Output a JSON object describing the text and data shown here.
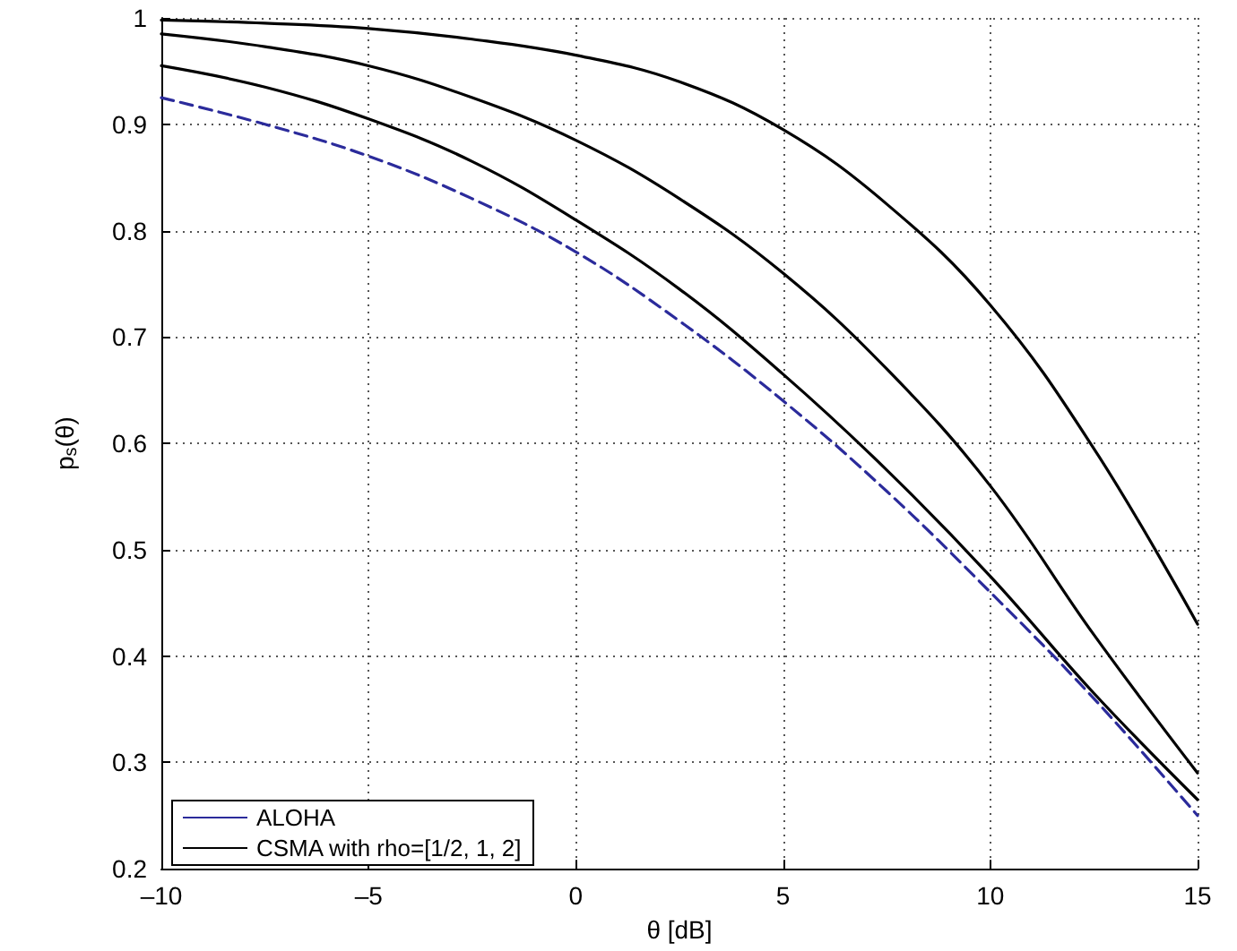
{
  "chart_data": {
    "type": "line",
    "xlabel": "θ [dB]",
    "ylabel": "p$_{s}$(θ)",
    "x": [
      -10,
      -7.5,
      -5,
      -2.5,
      0,
      2.5,
      5,
      7.5,
      10,
      12.5,
      15
    ],
    "series": [
      {
        "name": "ALOHA",
        "color": "#2b2b9b",
        "line_style": "dashed",
        "values": [
          0.925,
          0.9,
          0.87,
          0.83,
          0.78,
          0.715,
          0.64,
          0.555,
          0.46,
          0.36,
          0.25
        ]
      },
      {
        "name": "CSMA with rho=[1/2, 1, 2]",
        "color": "#000000",
        "line_style": "solid",
        "values": [
          0.955,
          0.935,
          0.905,
          0.865,
          0.81,
          0.745,
          0.665,
          0.575,
          0.475,
          0.365,
          0.265
        ]
      },
      {
        "color": "#000000",
        "line_style": "solid",
        "values": [
          0.985,
          0.973,
          0.955,
          0.925,
          0.885,
          0.83,
          0.76,
          0.67,
          0.56,
          0.42,
          0.29
        ]
      },
      {
        "color": "#000000",
        "line_style": "solid",
        "values": [
          0.998,
          0.995,
          0.99,
          0.98,
          0.965,
          0.94,
          0.895,
          0.825,
          0.73,
          0.595,
          0.43
        ]
      }
    ],
    "xlim": [
      -10,
      15
    ],
    "xticks": [
      {
        "value": -10,
        "label": "–10"
      },
      {
        "value": -5,
        "label": "–5"
      },
      0,
      5,
      10,
      15
    ],
    "ylim": [
      0.2,
      1
    ],
    "yticks": [
      0.2,
      0.3,
      0.4,
      0.5,
      0.6,
      0.7,
      0.8,
      0.9,
      1
    ],
    "grid": true,
    "legend": "bottom left",
    "marker": "none"
  }
}
